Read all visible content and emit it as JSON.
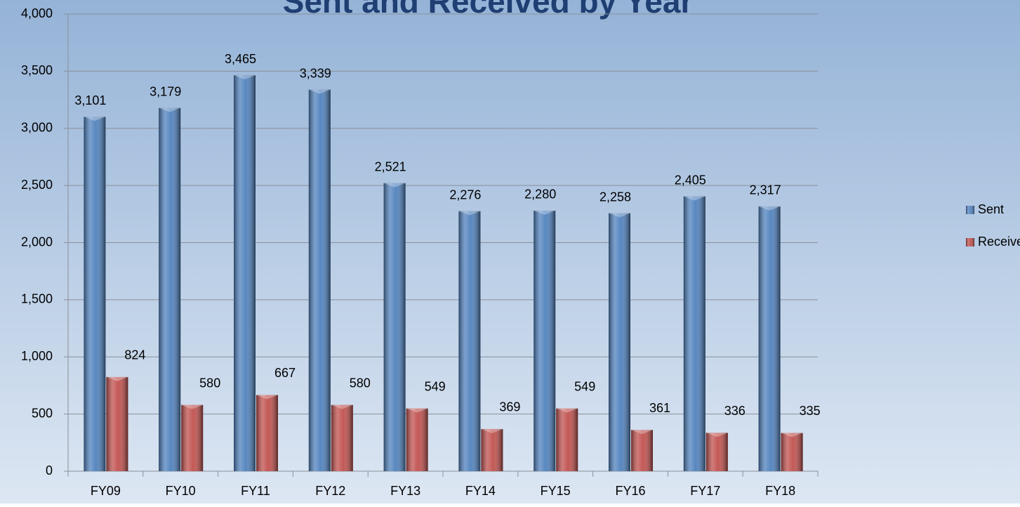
{
  "chart_data": {
    "type": "bar",
    "title": "Sent and Received by Year",
    "categories": [
      "FY09",
      "FY10",
      "FY11",
      "FY12",
      "FY13",
      "FY14",
      "FY15",
      "FY16",
      "FY17",
      "FY18"
    ],
    "series": [
      {
        "name": "Sent",
        "color": "#4f81bd",
        "values": [
          3101,
          3179,
          3465,
          3339,
          2521,
          2276,
          2280,
          2258,
          2405,
          2317
        ],
        "value_labels": [
          "3,101",
          "3,179",
          "3,465",
          "3,339",
          "2,521",
          "2,276",
          "2,280",
          "2,258",
          "2,405",
          "2,317"
        ]
      },
      {
        "name": "Received",
        "color": "#c0504d",
        "values": [
          824,
          580,
          667,
          580,
          549,
          369,
          549,
          361,
          336,
          335
        ]
      }
    ],
    "ylim": [
      0,
      4000
    ],
    "yticks": [
      0,
      500,
      {
        "value": 1000,
        "label": "1,000"
      },
      {
        "value": 1500,
        "label": "1,500"
      },
      {
        "value": 2000,
        "label": "2,000"
      },
      {
        "value": 2500,
        "label": "2,500"
      },
      {
        "value": 3000,
        "label": "3,000"
      },
      {
        "value": 3500,
        "label": "3,500"
      },
      {
        "value": 4000,
        "label": "4,000"
      }
    ],
    "grid": true,
    "legend": "right"
  }
}
